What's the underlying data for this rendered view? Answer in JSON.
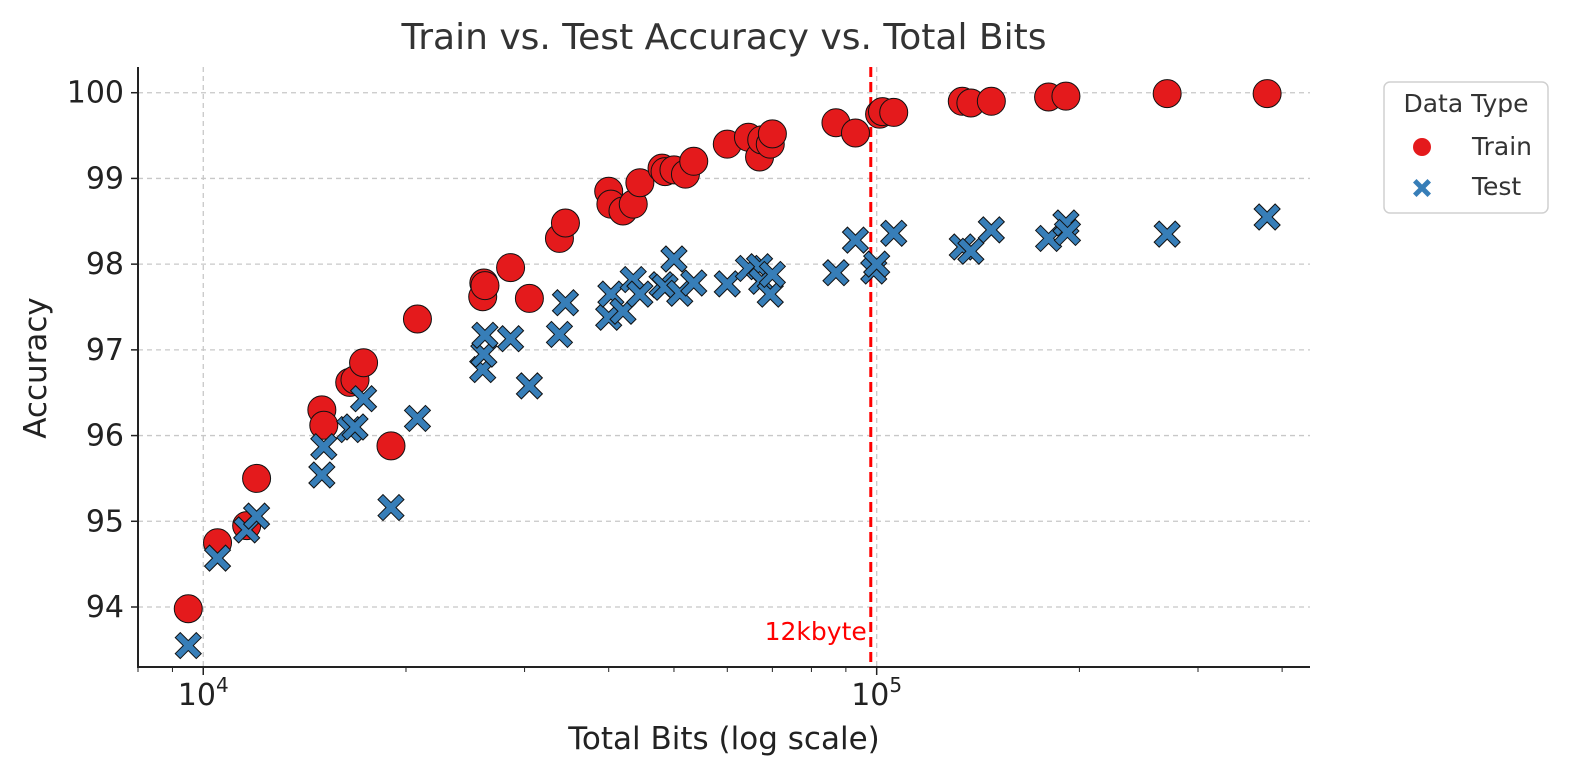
{
  "chart_data": {
    "type": "scatter",
    "title": "Train vs. Test Accuracy vs. Total Bits",
    "xlabel": "Total Bits (log scale)",
    "ylabel": "Accuracy",
    "xscale": "log",
    "xlim": [
      8000,
      440000
    ],
    "ylim": [
      93.3,
      100.3
    ],
    "x_ticks": [
      {
        "base": "10",
        "exp": "4",
        "value": 10000
      },
      {
        "base": "10",
        "exp": "5",
        "value": 100000
      }
    ],
    "y_ticks": [
      94,
      95,
      96,
      97,
      98,
      99,
      100
    ],
    "grid": true,
    "legend": {
      "title": "Data Type",
      "position": "outside-top-right"
    },
    "colors": {
      "train": "#e41a1c",
      "test": "#377eb8",
      "line": "#ff0000"
    },
    "vline": {
      "x": 98000,
      "label": "12kbyte"
    },
    "series": [
      {
        "name": "Train",
        "marker": "circle",
        "points": [
          [
            9500,
            93.98
          ],
          [
            10500,
            94.75
          ],
          [
            11600,
            94.95
          ],
          [
            12000,
            95.5
          ],
          [
            15000,
            96.3
          ],
          [
            15100,
            96.12
          ],
          [
            16500,
            96.62
          ],
          [
            16800,
            96.65
          ],
          [
            17300,
            96.85
          ],
          [
            19000,
            95.88
          ],
          [
            20800,
            97.36
          ],
          [
            26000,
            97.62
          ],
          [
            26100,
            97.78
          ],
          [
            26200,
            97.75
          ],
          [
            28600,
            97.96
          ],
          [
            30500,
            97.6
          ],
          [
            33800,
            98.3
          ],
          [
            34500,
            98.48
          ],
          [
            40000,
            98.85
          ],
          [
            40300,
            98.7
          ],
          [
            42000,
            98.62
          ],
          [
            43500,
            98.7
          ],
          [
            44500,
            98.95
          ],
          [
            48000,
            99.12
          ],
          [
            48500,
            99.08
          ],
          [
            50000,
            99.1
          ],
          [
            52000,
            99.05
          ],
          [
            53500,
            99.2
          ],
          [
            60000,
            99.4
          ],
          [
            64500,
            99.48
          ],
          [
            67000,
            99.25
          ],
          [
            67500,
            99.45
          ],
          [
            69500,
            99.4
          ],
          [
            70000,
            99.52
          ],
          [
            87000,
            99.65
          ],
          [
            93000,
            99.53
          ],
          [
            101000,
            99.75
          ],
          [
            102000,
            99.78
          ],
          [
            106000,
            99.77
          ],
          [
            134000,
            99.9
          ],
          [
            138000,
            99.88
          ],
          [
            148000,
            99.9
          ],
          [
            180000,
            99.95
          ],
          [
            191000,
            99.96
          ],
          [
            270000,
            99.99
          ],
          [
            380000,
            99.99
          ]
        ]
      },
      {
        "name": "Test",
        "marker": "x",
        "points": [
          [
            9500,
            93.55
          ],
          [
            10500,
            94.57
          ],
          [
            11600,
            94.9
          ],
          [
            12000,
            95.06
          ],
          [
            15000,
            95.54
          ],
          [
            15100,
            95.87
          ],
          [
            16500,
            96.07
          ],
          [
            16800,
            96.1
          ],
          [
            17300,
            96.43
          ],
          [
            19000,
            95.16
          ],
          [
            20800,
            96.2
          ],
          [
            26000,
            96.77
          ],
          [
            26100,
            96.95
          ],
          [
            26200,
            97.17
          ],
          [
            28600,
            97.13
          ],
          [
            30500,
            96.58
          ],
          [
            33800,
            97.18
          ],
          [
            34500,
            97.55
          ],
          [
            40000,
            97.38
          ],
          [
            40300,
            97.65
          ],
          [
            42000,
            97.45
          ],
          [
            43500,
            97.82
          ],
          [
            44500,
            97.65
          ],
          [
            48000,
            97.76
          ],
          [
            48500,
            97.73
          ],
          [
            50000,
            98.06
          ],
          [
            51000,
            97.66
          ],
          [
            53500,
            97.78
          ],
          [
            60000,
            97.77
          ],
          [
            64500,
            97.95
          ],
          [
            67000,
            97.97
          ],
          [
            67500,
            97.8
          ],
          [
            69500,
            97.65
          ],
          [
            70000,
            97.88
          ],
          [
            87000,
            97.9
          ],
          [
            93000,
            98.28
          ],
          [
            99000,
            97.92
          ],
          [
            100000,
            98.0
          ],
          [
            106000,
            98.36
          ],
          [
            134000,
            98.2
          ],
          [
            138000,
            98.15
          ],
          [
            148000,
            98.4
          ],
          [
            180000,
            98.3
          ],
          [
            191000,
            98.48
          ],
          [
            192000,
            98.37
          ],
          [
            270000,
            98.35
          ],
          [
            380000,
            98.55
          ]
        ]
      }
    ]
  }
}
